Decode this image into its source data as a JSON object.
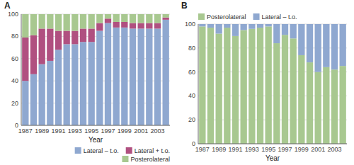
{
  "chart_data": [
    {
      "type": "bar",
      "stacked": true,
      "title": "A",
      "xlabel": "Year",
      "categories": [
        "1987",
        null,
        "1989",
        null,
        "1991",
        null,
        "1993",
        null,
        "1995",
        null,
        "1997",
        null,
        "1999",
        null,
        "2001",
        null,
        "2003",
        null
      ],
      "series": [
        {
          "name": "Lateral – t.o.",
          "color": "#8fa8d0",
          "values": [
            40,
            46,
            55,
            58,
            68,
            73,
            73,
            75,
            75,
            85,
            92,
            88,
            88,
            87,
            87,
            87,
            87,
            95
          ]
        },
        {
          "name": "Lateral + t.o.",
          "color": "#b05080",
          "values": [
            39,
            35,
            32,
            29,
            17,
            12,
            12,
            12,
            12,
            7,
            4,
            5,
            5,
            5,
            5,
            5,
            5,
            2
          ]
        },
        {
          "name": "Posterolateral",
          "color": "#a8c890",
          "values": [
            21,
            19,
            13,
            13,
            15,
            15,
            15,
            13,
            13,
            8,
            4,
            7,
            7,
            8,
            8,
            8,
            8,
            3
          ]
        }
      ],
      "ylim": [
        0,
        100
      ],
      "yticks": [
        0,
        20,
        40,
        60,
        80,
        100
      ],
      "grid": true,
      "legend": "lower right"
    },
    {
      "type": "bar",
      "stacked": true,
      "title": "B",
      "xlabel": "Year",
      "categories": [
        "1987",
        null,
        "1989",
        null,
        "1991",
        null,
        "1993",
        null,
        "1995",
        null,
        "1997",
        null,
        "1999",
        null,
        "2001",
        null,
        "2003",
        null
      ],
      "series": [
        {
          "name": "Posterolateral",
          "color": "#a8c890",
          "values": [
            98,
            97,
            92,
            97,
            90,
            95,
            96,
            97,
            98,
            84,
            91,
            88,
            74,
            68,
            60,
            64,
            62,
            65
          ]
        },
        {
          "name": "Lateral – t.o.",
          "color": "#8fa8d0",
          "values": [
            2,
            3,
            8,
            3,
            10,
            5,
            4,
            3,
            2,
            16,
            9,
            12,
            26,
            32,
            40,
            36,
            38,
            35
          ]
        }
      ],
      "ylim": [
        0,
        100
      ],
      "yticks": [
        0,
        20,
        40,
        60,
        80,
        100
      ],
      "grid": true,
      "legend": "upper left"
    }
  ]
}
